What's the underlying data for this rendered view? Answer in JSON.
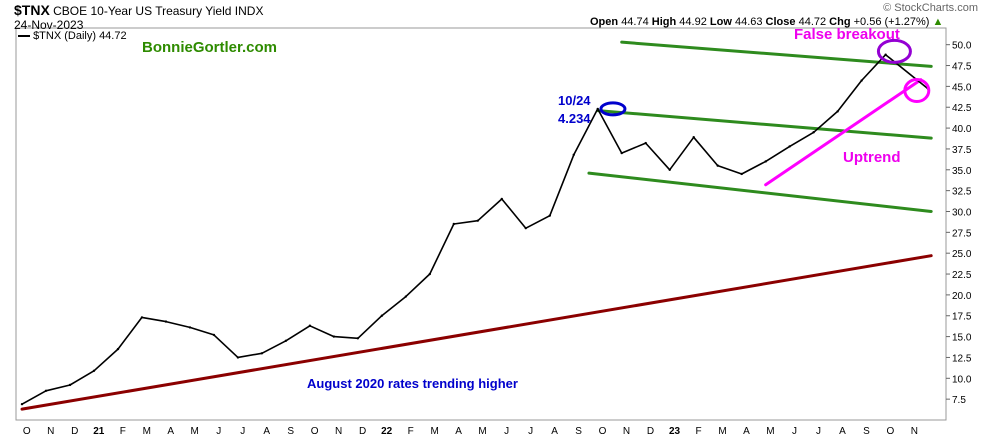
{
  "header": {
    "symbol": "$TNX",
    "name": "CBOE 10-Year US Treasury Yield INDX",
    "date": "24-Nov-2023",
    "watermark": "© StockCharts.com",
    "open_label": "Open",
    "open": "44.74",
    "high_label": "High",
    "high": "44.92",
    "low_label": "Low",
    "low": "44.63",
    "close_label": "Close",
    "close": "44.72",
    "chg_label": "Chg",
    "chg": "+0.56 (+1.27%)",
    "chg_arrow": "▲"
  },
  "legend": {
    "series_label": "$TNX (Daily) 44.72"
  },
  "annotations": {
    "site": "BonnieGortler.com",
    "peak_date": "10/24",
    "peak_value": "4.234",
    "false_breakout": "False breakout",
    "uptrend": "Uptrend",
    "long_trend": "August 2020 rates trending higher"
  },
  "colors": {
    "price": "#000000",
    "channel": "#2e8b1e",
    "uptrend": "#ff00ff",
    "long_trend": "#8b0000",
    "label_blue": "#0000cc",
    "label_green": "#2e8b00",
    "label_magenta": "#ee00ee",
    "circle_blue": "#0000cc",
    "circle_purple": "#9400d3",
    "circle_pink": "#ff00ff"
  },
  "chart_data": {
    "type": "line",
    "title": "$TNX CBOE 10-Year US Treasury Yield INDX",
    "ylim": [
      5,
      52
    ],
    "y_ticks": [
      "7.5",
      "10.0",
      "12.5",
      "15.0",
      "17.5",
      "20.0",
      "22.5",
      "25.0",
      "27.5",
      "30.0",
      "32.5",
      "35.0",
      "37.5",
      "40.0",
      "42.5",
      "45.0",
      "47.5",
      "50.0"
    ],
    "x_ticks": [
      "O",
      "N",
      "D",
      "21",
      "F",
      "M",
      "A",
      "M",
      "J",
      "J",
      "A",
      "S",
      "O",
      "N",
      "D",
      "22",
      "F",
      "M",
      "A",
      "M",
      "J",
      "J",
      "A",
      "S",
      "O",
      "N",
      "D",
      "23",
      "F",
      "M",
      "A",
      "M",
      "J",
      "J",
      "A",
      "S",
      "O",
      "N"
    ],
    "x_start": "2020-10",
    "x_end": "2023-11-24",
    "series": [
      {
        "name": "$TNX (Daily)",
        "points": [
          [
            "2020-10",
            6.9
          ],
          [
            "2020-11",
            8.5
          ],
          [
            "2020-12",
            9.2
          ],
          [
            "2021-01",
            10.9
          ],
          [
            "2021-02",
            13.5
          ],
          [
            "2021-03",
            17.3
          ],
          [
            "2021-04",
            16.8
          ],
          [
            "2021-05",
            16.1
          ],
          [
            "2021-06",
            15.2
          ],
          [
            "2021-07",
            12.5
          ],
          [
            "2021-08",
            13.0
          ],
          [
            "2021-09",
            14.5
          ],
          [
            "2021-10",
            16.3
          ],
          [
            "2021-11",
            15.0
          ],
          [
            "2021-12",
            14.8
          ],
          [
            "2022-01",
            17.5
          ],
          [
            "2022-02",
            19.8
          ],
          [
            "2022-03",
            22.5
          ],
          [
            "2022-04",
            28.5
          ],
          [
            "2022-05",
            28.9
          ],
          [
            "2022-06",
            31.5
          ],
          [
            "2022-07",
            28.0
          ],
          [
            "2022-08",
            29.5
          ],
          [
            "2022-09",
            36.8
          ],
          [
            "2022-10",
            42.3
          ],
          [
            "2022-11",
            37.0
          ],
          [
            "2022-12",
            38.2
          ],
          [
            "2023-01",
            35.0
          ],
          [
            "2023-02",
            38.9
          ],
          [
            "2023-03",
            35.5
          ],
          [
            "2023-04",
            34.5
          ],
          [
            "2023-05",
            36.0
          ],
          [
            "2023-06",
            37.8
          ],
          [
            "2023-07",
            39.5
          ],
          [
            "2023-08",
            42.0
          ],
          [
            "2023-09",
            45.7
          ],
          [
            "2023-10",
            48.8
          ],
          [
            "2023-11-24",
            44.72
          ]
        ]
      }
    ],
    "grid": false,
    "legend_position": "top-left"
  }
}
